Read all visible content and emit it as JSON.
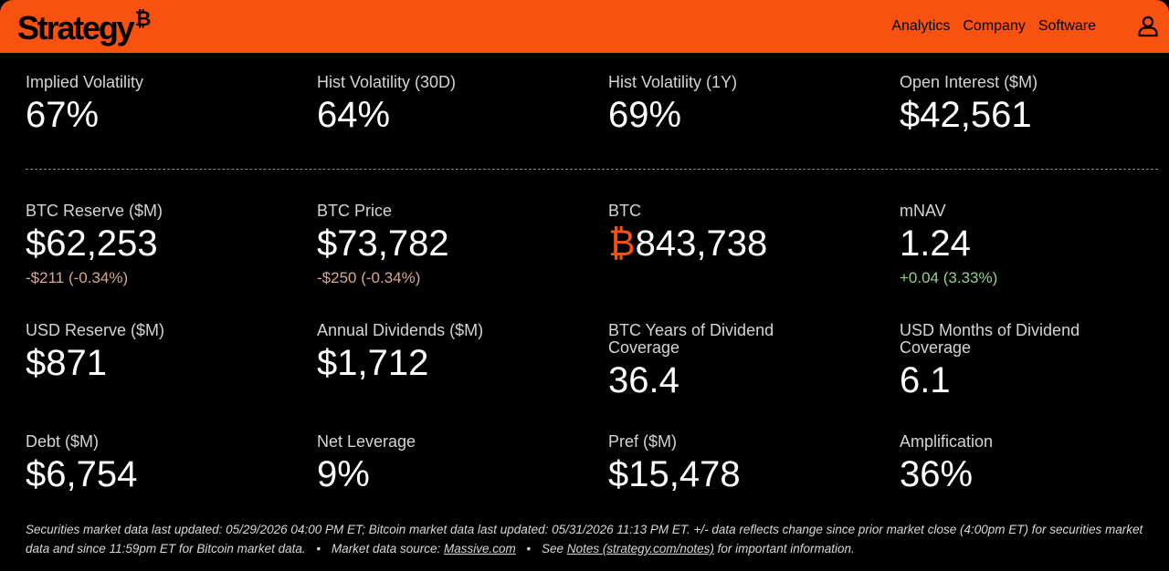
{
  "header": {
    "logo_text": "Strategy",
    "logo_mark": "₿",
    "nav": [
      "Analytics",
      "Company",
      "Software"
    ],
    "user_icon": "user-icon"
  },
  "top_metrics": [
    {
      "label": "Implied Volatility",
      "value": "67%"
    },
    {
      "label": "Hist Volatility (30D)",
      "value": "64%"
    },
    {
      "label": "Hist Volatility (1Y)",
      "value": "69%"
    },
    {
      "label": "Open Interest ($M)",
      "value": "$42,561"
    }
  ],
  "metrics_row1": [
    {
      "label": "BTC Reserve ($M)",
      "value": "$62,253",
      "change": "-$211 (-0.34%)"
    },
    {
      "label": "BTC Price",
      "value": "$73,782",
      "change": "-$250 (-0.34%)"
    },
    {
      "label": "BTC",
      "value_prefix": "₿",
      "value": "843,738"
    },
    {
      "label": "mNAV",
      "value": "1.24",
      "change": "+0.04 (3.33%)"
    }
  ],
  "metrics_row2": [
    {
      "label": "USD Reserve ($M)",
      "value": "$871"
    },
    {
      "label": "Annual Dividends ($M)",
      "value": "$1,712"
    },
    {
      "label": "BTC Years of Dividend Coverage",
      "value": "36.4"
    },
    {
      "label": "USD Months of Dividend Coverage",
      "value": "6.1"
    }
  ],
  "metrics_row3": [
    {
      "label": "Debt ($M)",
      "value": "$6,754"
    },
    {
      "label": "Net Leverage",
      "value": "9%"
    },
    {
      "label": "Pref ($M)",
      "value": "$15,478"
    },
    {
      "label": "Amplification",
      "value": "36%"
    }
  ],
  "colors": {
    "accent": "#f7520f",
    "background": "#000000",
    "negative": "#d7a892",
    "positive": "#8fd08f"
  },
  "footer": {
    "text1": "Securities market data last updated: 05/29/2026 04:00 PM ET; Bitcoin market data last updated: 05/31/2026 11:13 PM ET. +/- data reflects change since prior market close (4:00pm ET) for securities market data and since 11:59pm ET for Bitcoin market data.",
    "separator": "•",
    "source_prefix": "Market data source:",
    "source_link": "Massive.com",
    "notes_prefix": "See",
    "notes_link": "Notes (strategy.com/notes)",
    "notes_suffix": "for important information."
  }
}
